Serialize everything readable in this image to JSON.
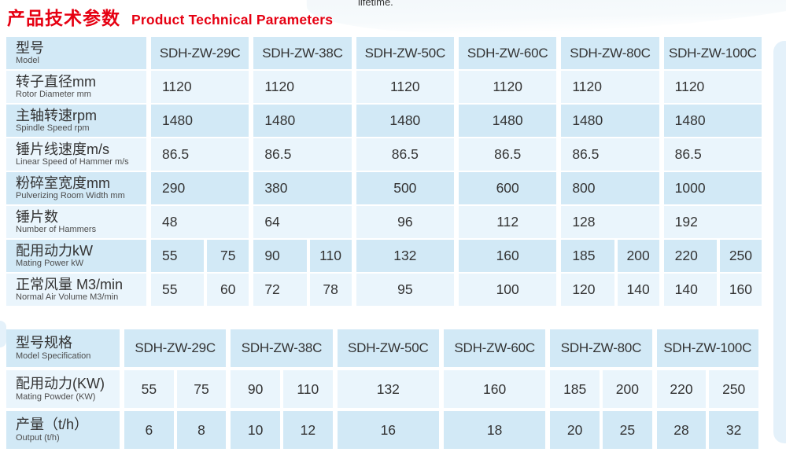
{
  "decor": {
    "accent_red": "#e60012",
    "cell_blue": "#d2e9f6",
    "cell_light": "#eaf5fc",
    "band_blue": "#e4f1fa"
  },
  "header": {
    "title_zh": "产品技术参数",
    "title_en": "Product Technical Parameters",
    "top_right_note": "lifetime."
  },
  "table1": {
    "label": {
      "zh": "型号",
      "en": "Model"
    },
    "models": [
      "SDH-ZW-29C",
      "SDH-ZW-38C",
      "SDH-ZW-50C",
      "SDH-ZW-60C",
      "SDH-ZW-80C",
      "SDH-ZW-100C"
    ],
    "rows": [
      {
        "zh": "转子直径mm",
        "en": "Rotor Diameter mm",
        "cells": [
          [
            "1120"
          ],
          [
            "1120"
          ],
          [
            "1120"
          ],
          [
            "1120"
          ],
          [
            "1120"
          ],
          [
            "1120"
          ]
        ]
      },
      {
        "zh": "主轴转速rpm",
        "en": "Spindle Speed rpm",
        "cells": [
          [
            "1480"
          ],
          [
            "1480"
          ],
          [
            "1480"
          ],
          [
            "1480"
          ],
          [
            "1480"
          ],
          [
            "1480"
          ]
        ]
      },
      {
        "zh": "锤片线速度m/s",
        "en": "Linear Speed of Hammer m/s",
        "cells": [
          [
            "86.5"
          ],
          [
            "86.5"
          ],
          [
            "86.5"
          ],
          [
            "86.5"
          ],
          [
            "86.5"
          ],
          [
            "86.5"
          ]
        ]
      },
      {
        "zh": "粉碎室宽度mm",
        "en": "Pulverizing Room Width mm",
        "cells": [
          [
            "290"
          ],
          [
            "380"
          ],
          [
            "500"
          ],
          [
            "600"
          ],
          [
            "800"
          ],
          [
            "1000"
          ]
        ]
      },
      {
        "zh": "锤片数",
        "en": "Number of Hammers",
        "cells": [
          [
            "48"
          ],
          [
            "64"
          ],
          [
            "96"
          ],
          [
            "112"
          ],
          [
            "128"
          ],
          [
            "192"
          ]
        ]
      },
      {
        "zh": "配用动力kW",
        "en": "Mating Power kW",
        "cells": [
          [
            "55",
            "75"
          ],
          [
            "90",
            "110"
          ],
          [
            "132"
          ],
          [
            "160"
          ],
          [
            "185",
            "200"
          ],
          [
            "220",
            "250"
          ]
        ]
      },
      {
        "zh": "正常风量 M3/min",
        "en": "Normal Air Volume M3/min",
        "cells": [
          [
            "55",
            "60"
          ],
          [
            "72",
            "78"
          ],
          [
            "95"
          ],
          [
            "100"
          ],
          [
            "120",
            "140"
          ],
          [
            "140",
            "160"
          ]
        ]
      }
    ],
    "center_single_columns": [
      2,
      3
    ]
  },
  "table2": {
    "label": {
      "zh": "型号规格",
      "en": "Model Specification"
    },
    "models": [
      "SDH-ZW-29C",
      "SDH-ZW-38C",
      "SDH-ZW-50C",
      "SDH-ZW-60C",
      "SDH-ZW-80C",
      "SDH-ZW-100C"
    ],
    "rows": [
      {
        "zh": "配用动力(KW)",
        "en": "Mating Powder (KW)",
        "cells": [
          [
            "55",
            "75"
          ],
          [
            "90",
            "110"
          ],
          [
            "132"
          ],
          [
            "160"
          ],
          [
            "185",
            "200"
          ],
          [
            "220",
            "250"
          ]
        ]
      },
      {
        "zh": "产量（t/h）",
        "en": "Output (t/h)",
        "cells": [
          [
            "6",
            "8"
          ],
          [
            "10",
            "12"
          ],
          [
            "16"
          ],
          [
            "18"
          ],
          [
            "20",
            "25"
          ],
          [
            "28",
            "32"
          ]
        ]
      }
    ],
    "center_single_columns": [
      0,
      1,
      2,
      3,
      4,
      5
    ]
  }
}
